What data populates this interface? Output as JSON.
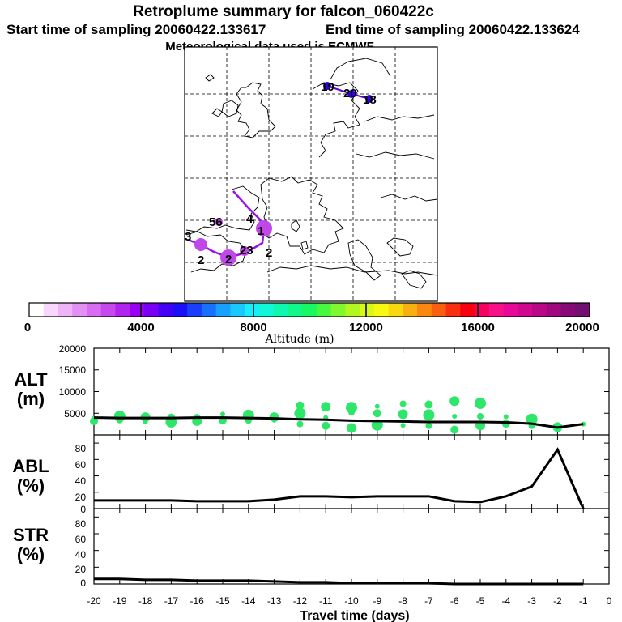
{
  "title": {
    "line1": "Retroplume summary for falcon_060422c",
    "line2_start": "Start time of sampling 20060422.133617",
    "line2_end": "End time of sampling 20060422.133624",
    "line3": "Meteorological data used is ECMWF"
  },
  "colorbar": {
    "label": "Altitude (m)",
    "ticks": [
      "0",
      "4000",
      "8000",
      "12000",
      "16000",
      "20000"
    ],
    "colors": [
      "#ffffff",
      "#f7d8fb",
      "#eeb4f7",
      "#e390f4",
      "#d86cf2",
      "#c748ef",
      "#b024ee",
      "#9a00f2",
      "#7800f4",
      "#4400f6",
      "#1a10f8",
      "#1840fc",
      "#1870ff",
      "#18a0ff",
      "#18c8ff",
      "#18ecf8",
      "#10f8d8",
      "#10f8b0",
      "#10f888",
      "#18f860",
      "#48f840",
      "#80f830",
      "#b0f820",
      "#d8f818",
      "#f8f810",
      "#f8d810",
      "#f8b010",
      "#f88810",
      "#f86010",
      "#f83010",
      "#f80010",
      "#f80060",
      "#f81088",
      "#e80898",
      "#d00890",
      "#b80888",
      "#a00880",
      "#880878",
      "#701070"
    ]
  },
  "map": {
    "labels": [
      {
        "text": "19",
        "fill": "#6600cc"
      },
      {
        "text": "20",
        "fill": "#6600cc"
      },
      {
        "text": "18",
        "fill": "#6600cc"
      },
      {
        "text": "1",
        "fill": "#c048e8"
      },
      {
        "text": "56",
        "fill": "#c048e8"
      },
      {
        "text": "3",
        "fill": "#c048e8"
      },
      {
        "text": "2",
        "fill": "#c048e8"
      },
      {
        "text": "2",
        "fill": "#c048e8"
      },
      {
        "text": "23",
        "fill": "#c048e8"
      },
      {
        "text": "2",
        "fill": "#c048e8"
      },
      {
        "text": "4",
        "fill": "#c048e8"
      }
    ]
  },
  "chart_data": [
    {
      "type": "line",
      "title": "ALT (m)",
      "ylabel": "ALT\n(m)",
      "ylim": [
        0,
        20000
      ],
      "yticks": [
        5000,
        10000,
        15000,
        20000
      ],
      "x": [
        -20,
        -19,
        -18,
        -17,
        -16,
        -15,
        -14,
        -13,
        -12,
        -11,
        -10,
        -9,
        -8,
        -7,
        -6,
        -5,
        -4,
        -3,
        -2,
        -1
      ],
      "series": [
        {
          "name": "median altitude",
          "values": [
            4000,
            3900,
            3900,
            3900,
            4000,
            4000,
            3900,
            3800,
            3600,
            3500,
            3300,
            3200,
            3100,
            3000,
            3000,
            3000,
            2900,
            2600,
            1700,
            2500
          ]
        }
      ],
      "scatter": [
        {
          "x": -20,
          "y": 3800
        },
        {
          "x": -20,
          "y": 3200
        },
        {
          "x": -19,
          "y": 4300
        },
        {
          "x": -19,
          "y": 3400
        },
        {
          "x": -18,
          "y": 4100
        },
        {
          "x": -18,
          "y": 3000
        },
        {
          "x": -17,
          "y": 4000
        },
        {
          "x": -17,
          "y": 3000
        },
        {
          "x": -16,
          "y": 4100
        },
        {
          "x": -16,
          "y": 3200
        },
        {
          "x": -15,
          "y": 4800
        },
        {
          "x": -15,
          "y": 3400
        },
        {
          "x": -14,
          "y": 4500
        },
        {
          "x": -14,
          "y": 3300
        },
        {
          "x": -13,
          "y": 4100
        },
        {
          "x": -13,
          "y": 3400
        },
        {
          "x": -12,
          "y": 6800
        },
        {
          "x": -12,
          "y": 5000
        },
        {
          "x": -12,
          "y": 2500
        },
        {
          "x": -11,
          "y": 6500
        },
        {
          "x": -11,
          "y": 4000
        },
        {
          "x": -11,
          "y": 2100
        },
        {
          "x": -10,
          "y": 6300
        },
        {
          "x": -10,
          "y": 5200
        },
        {
          "x": -10,
          "y": 1600
        },
        {
          "x": -9,
          "y": 6600
        },
        {
          "x": -9,
          "y": 5000
        },
        {
          "x": -9,
          "y": 2300
        },
        {
          "x": -8,
          "y": 7200
        },
        {
          "x": -8,
          "y": 4800
        },
        {
          "x": -8,
          "y": 2200
        },
        {
          "x": -7,
          "y": 7000
        },
        {
          "x": -7,
          "y": 4600
        },
        {
          "x": -7,
          "y": 2100
        },
        {
          "x": -6,
          "y": 7800
        },
        {
          "x": -6,
          "y": 4300
        },
        {
          "x": -6,
          "y": 1200
        },
        {
          "x": -5,
          "y": 7300
        },
        {
          "x": -5,
          "y": 4300
        },
        {
          "x": -5,
          "y": 2200
        },
        {
          "x": -4,
          "y": 4200
        },
        {
          "x": -4,
          "y": 2600
        },
        {
          "x": -3,
          "y": 3600
        },
        {
          "x": -3,
          "y": 2100
        },
        {
          "x": -2,
          "y": 1800
        },
        {
          "x": -1,
          "y": 2500
        }
      ]
    },
    {
      "type": "line",
      "title": "ABL (%)",
      "ylabel": "ABL\n(%)",
      "ylim": [
        0,
        90
      ],
      "yticks": [
        0,
        20,
        40,
        60,
        80
      ],
      "x": [
        -20,
        -19,
        -18,
        -17,
        -16,
        -15,
        -14,
        -13,
        -12,
        -11,
        -10,
        -9,
        -8,
        -7,
        -6,
        -5,
        -4,
        -3,
        -2,
        -1
      ],
      "series": [
        {
          "name": "ABL fraction",
          "values": [
            10,
            10,
            10,
            10,
            9,
            9,
            9,
            11,
            15,
            15,
            14,
            15,
            15,
            15,
            9,
            8,
            15,
            27,
            72,
            0
          ]
        }
      ]
    },
    {
      "type": "line",
      "title": "STR (%)",
      "ylabel": "STR\n(%)",
      "ylim": [
        0,
        90
      ],
      "yticks": [
        0,
        20,
        40,
        60,
        80
      ],
      "x": [
        -20,
        -19,
        -18,
        -17,
        -16,
        -15,
        -14,
        -13,
        -12,
        -11,
        -10,
        -9,
        -8,
        -7,
        -6,
        -5,
        -4,
        -3,
        -2,
        -1
      ],
      "series": [
        {
          "name": "stratospheric fraction",
          "values": [
            6,
            6,
            5,
            5,
            4,
            4,
            4,
            3,
            2,
            2,
            1,
            1,
            1,
            1,
            0,
            0,
            0,
            0,
            0,
            0
          ]
        }
      ],
      "xlabel": "Travel time (days)",
      "xticks": [
        "-20",
        "-19",
        "-18",
        "-17",
        "-16",
        "-15",
        "-14",
        "-13",
        "-12",
        "-11",
        "-10",
        "-9",
        "-8",
        "-7",
        "-6",
        "-5",
        "-4",
        "-3",
        "-2",
        "-1",
        "0"
      ]
    }
  ],
  "panels": {
    "alt_label_1": "ALT",
    "alt_label_2": "(m)",
    "abl_label_1": "ABL",
    "abl_label_2": "(%)",
    "str_label_1": "STR",
    "str_label_2": "(%)",
    "alt_yticks": [
      "20000",
      "15000",
      "10000",
      "5000"
    ],
    "abl_yticks": [
      "80",
      "60",
      "40",
      "20",
      "0"
    ],
    "str_yticks": [
      "80",
      "60",
      "40",
      "20",
      "0"
    ]
  },
  "styling": {
    "accent": "#2de66a",
    "line": "#000000"
  }
}
